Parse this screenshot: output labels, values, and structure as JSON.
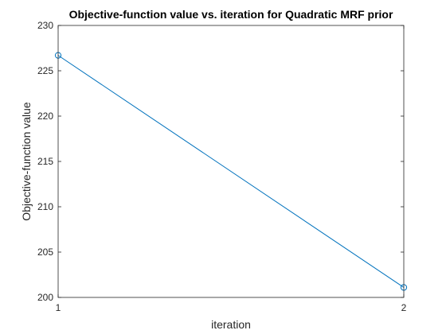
{
  "chart_data": {
    "type": "line",
    "title": "Objective-function value vs. iteration for Quadratic MRF prior",
    "xlabel": "iteration",
    "ylabel": "Objective-function value",
    "x": [
      1,
      2
    ],
    "series": [
      {
        "values": [
          226.7,
          201.1
        ],
        "color": "#0072bd",
        "marker": "circle"
      }
    ],
    "xlim": [
      1,
      2
    ],
    "ylim": [
      200,
      230
    ],
    "xticks": [
      1,
      2
    ],
    "xtick_labels": [
      "1",
      "2"
    ],
    "yticks": [
      200,
      205,
      210,
      215,
      220,
      225,
      230
    ],
    "ytick_labels": [
      "200",
      "205",
      "210",
      "215",
      "220",
      "225",
      "230"
    ],
    "grid": false,
    "box": true
  }
}
